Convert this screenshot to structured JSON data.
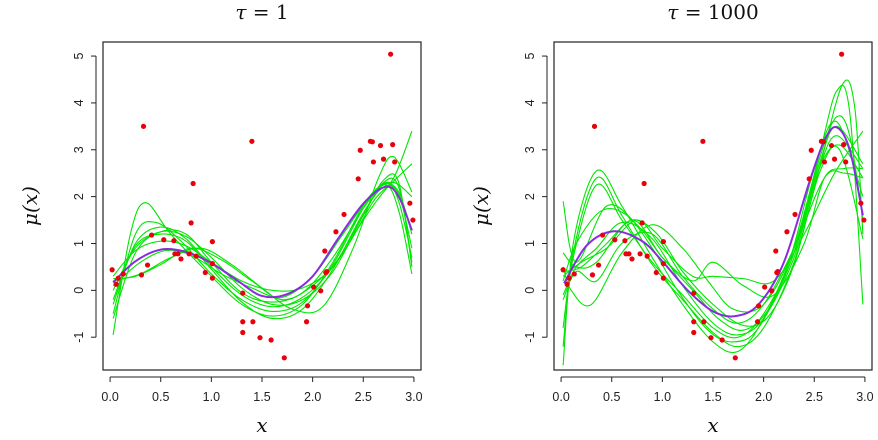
{
  "chart_data": [
    {
      "type": "scatter",
      "title": "τ = 1",
      "title_symbol": "τ",
      "title_value": "1",
      "xlabel": "x",
      "ylabel": "μ(x)",
      "xlim": [
        -0.07,
        3.07
      ],
      "ylim": [
        -1.7,
        5.3
      ],
      "xticks": [
        0.0,
        0.5,
        1.0,
        1.5,
        2.0,
        2.5,
        3.0
      ],
      "xtick_labels": [
        "0.0",
        "0.5",
        "1.0",
        "1.5",
        "2.0",
        "2.5",
        "3.0"
      ],
      "yticks": [
        -1,
        0,
        1,
        2,
        3,
        4,
        5
      ],
      "ytick_labels": [
        "-1",
        "0",
        "1",
        "2",
        "3",
        "4",
        "5"
      ],
      "grid": false,
      "colors": {
        "points": "#e8000b",
        "mean": "#8a2be2",
        "samples": "#00e600"
      },
      "points": [
        [
          0.02,
          0.44
        ],
        [
          0.06,
          0.13
        ],
        [
          0.08,
          0.26
        ],
        [
          0.13,
          0.35
        ],
        [
          0.31,
          0.33
        ],
        [
          0.33,
          3.5
        ],
        [
          0.37,
          0.54
        ],
        [
          0.41,
          1.18
        ],
        [
          0.53,
          1.08
        ],
        [
          0.63,
          1.06
        ],
        [
          0.64,
          0.78
        ],
        [
          0.67,
          0.78
        ],
        [
          0.7,
          0.67
        ],
        [
          0.78,
          0.78
        ],
        [
          0.8,
          1.44
        ],
        [
          0.82,
          2.28
        ],
        [
          0.85,
          0.73
        ],
        [
          0.94,
          0.38
        ],
        [
          1.01,
          0.57
        ],
        [
          1.01,
          1.04
        ],
        [
          1.01,
          0.26
        ],
        [
          1.31,
          -0.06
        ],
        [
          1.31,
          -0.67
        ],
        [
          1.31,
          -0.9
        ],
        [
          1.4,
          3.18
        ],
        [
          1.41,
          -0.67
        ],
        [
          1.48,
          -1.01
        ],
        [
          1.59,
          -1.06
        ],
        [
          1.72,
          -1.44
        ],
        [
          1.94,
          -0.67
        ],
        [
          1.95,
          -0.33
        ],
        [
          2.01,
          0.07
        ],
        [
          2.08,
          -0.01
        ],
        [
          2.12,
          0.84
        ],
        [
          2.13,
          0.38
        ],
        [
          2.14,
          0.4
        ],
        [
          2.23,
          1.25
        ],
        [
          2.31,
          1.62
        ],
        [
          2.45,
          2.38
        ],
        [
          2.47,
          2.99
        ],
        [
          2.57,
          3.18
        ],
        [
          2.59,
          3.17
        ],
        [
          2.6,
          2.74
        ],
        [
          2.67,
          3.09
        ],
        [
          2.7,
          2.8
        ],
        [
          2.77,
          5.04
        ],
        [
          2.79,
          3.11
        ],
        [
          2.81,
          2.74
        ],
        [
          2.96,
          1.86
        ],
        [
          2.99,
          1.5
        ]
      ],
      "mean_curve": {
        "x": [
          0.03,
          0.25,
          0.5,
          0.75,
          1.0,
          1.25,
          1.5,
          1.75,
          2.0,
          2.25,
          2.5,
          2.72,
          2.85,
          2.98
        ],
        "y": [
          0.17,
          0.62,
          0.87,
          0.82,
          0.58,
          0.22,
          -0.12,
          -0.08,
          0.3,
          1.1,
          1.85,
          2.21,
          2.0,
          1.28
        ]
      },
      "sample_curves": [
        {
          "x": [
            0.03,
            0.2,
            0.35,
            0.6,
            1.0,
            1.3,
            1.6,
            1.9,
            2.2,
            2.5,
            2.72,
            2.85,
            2.98
          ],
          "y": [
            -0.95,
            1.2,
            1.87,
            1.2,
            0.3,
            -0.3,
            -0.55,
            -0.3,
            0.6,
            1.8,
            2.25,
            1.7,
            0.35
          ]
        },
        {
          "x": [
            0.03,
            0.25,
            0.45,
            0.7,
            1.0,
            1.3,
            1.6,
            1.9,
            2.2,
            2.5,
            2.72,
            2.85,
            2.98
          ],
          "y": [
            -0.5,
            1.2,
            1.45,
            1.05,
            0.35,
            -0.2,
            -0.45,
            -0.25,
            0.55,
            1.75,
            2.3,
            1.9,
            0.7
          ]
        },
        {
          "x": [
            0.03,
            0.25,
            0.5,
            0.75,
            1.0,
            1.3,
            1.6,
            1.9,
            2.2,
            2.5,
            2.7,
            2.85,
            2.98
          ],
          "y": [
            -0.3,
            1.0,
            1.35,
            1.1,
            0.5,
            -0.1,
            -0.35,
            -0.15,
            0.5,
            1.6,
            2.35,
            2.3,
            0.5
          ]
        },
        {
          "x": [
            0.03,
            0.25,
            0.5,
            0.75,
            1.0,
            1.3,
            1.6,
            1.9,
            2.2,
            2.5,
            2.7,
            2.85,
            2.98
          ],
          "y": [
            0.0,
            0.9,
            1.25,
            1.15,
            0.7,
            0.05,
            -0.3,
            -0.2,
            0.4,
            1.6,
            2.3,
            2.2,
            0.6
          ]
        },
        {
          "x": [
            0.03,
            0.25,
            0.5,
            0.75,
            1.0,
            1.3,
            1.6,
            1.9,
            2.2,
            2.5,
            2.72,
            2.98
          ],
          "y": [
            0.3,
            0.85,
            1.05,
            0.95,
            0.6,
            0.2,
            0.0,
            0.05,
            0.5,
            1.5,
            2.15,
            2.7
          ]
        },
        {
          "x": [
            0.03,
            0.3,
            0.6,
            0.9,
            1.2,
            1.5,
            1.8,
            2.1,
            2.4,
            2.65,
            2.8,
            2.98
          ],
          "y": [
            0.2,
            0.35,
            0.7,
            0.9,
            0.55,
            0.05,
            -0.4,
            -0.35,
            0.9,
            2.4,
            2.85,
            2.1
          ]
        },
        {
          "x": [
            0.03,
            0.25,
            0.5,
            0.8,
            1.1,
            1.4,
            1.7,
            2.0,
            2.3,
            2.6,
            2.8,
            2.98
          ],
          "y": [
            0.25,
            0.3,
            0.55,
            0.9,
            0.65,
            0.2,
            -0.2,
            0.1,
            0.8,
            1.9,
            2.4,
            3.4
          ]
        },
        {
          "x": [
            0.03,
            0.25,
            0.5,
            0.75,
            1.0,
            1.3,
            1.6,
            1.9,
            2.2,
            2.5,
            2.7,
            2.85,
            2.98
          ],
          "y": [
            -0.6,
            0.8,
            1.25,
            1.2,
            0.6,
            -0.05,
            -0.25,
            -0.05,
            0.7,
            1.75,
            2.25,
            2.1,
            1.2
          ]
        },
        {
          "x": [
            0.03,
            0.25,
            0.5,
            0.75,
            1.0,
            1.3,
            1.6,
            1.9,
            2.2,
            2.5,
            2.7,
            2.85,
            2.98
          ],
          "y": [
            -0.2,
            0.95,
            1.2,
            1.05,
            0.45,
            -0.25,
            -0.6,
            -0.4,
            0.45,
            1.65,
            2.2,
            2.05,
            0.9
          ]
        },
        {
          "x": [
            0.03,
            0.3,
            0.55,
            0.8,
            1.1,
            1.4,
            1.7,
            2.0,
            2.3,
            2.6,
            2.8,
            2.98
          ],
          "y": [
            0.1,
            0.6,
            0.85,
            0.75,
            0.35,
            0.05,
            -0.15,
            0.3,
            1.2,
            2.1,
            2.3,
            2.0
          ]
        }
      ]
    },
    {
      "type": "scatter",
      "title": "τ = 1000",
      "title_symbol": "τ",
      "title_value": "1000",
      "xlabel": "x",
      "ylabel": "μ(x)",
      "xlim": [
        -0.07,
        3.07
      ],
      "ylim": [
        -1.7,
        5.3
      ],
      "xticks": [
        0.0,
        0.5,
        1.0,
        1.5,
        2.0,
        2.5,
        3.0
      ],
      "xtick_labels": [
        "0.0",
        "0.5",
        "1.0",
        "1.5",
        "2.0",
        "2.5",
        "3.0"
      ],
      "yticks": [
        -1,
        0,
        1,
        2,
        3,
        4,
        5
      ],
      "ytick_labels": [
        "-1",
        "0",
        "1",
        "2",
        "3",
        "4",
        "5"
      ],
      "grid": false,
      "colors": {
        "points": "#e8000b",
        "mean": "#8a2be2",
        "samples": "#00e600"
      },
      "points": [
        [
          0.02,
          0.44
        ],
        [
          0.06,
          0.13
        ],
        [
          0.08,
          0.26
        ],
        [
          0.13,
          0.35
        ],
        [
          0.31,
          0.33
        ],
        [
          0.33,
          3.5
        ],
        [
          0.37,
          0.54
        ],
        [
          0.41,
          1.18
        ],
        [
          0.53,
          1.08
        ],
        [
          0.63,
          1.06
        ],
        [
          0.64,
          0.78
        ],
        [
          0.67,
          0.78
        ],
        [
          0.7,
          0.67
        ],
        [
          0.78,
          0.78
        ],
        [
          0.8,
          1.44
        ],
        [
          0.82,
          2.28
        ],
        [
          0.85,
          0.73
        ],
        [
          0.94,
          0.38
        ],
        [
          1.01,
          0.57
        ],
        [
          1.01,
          1.04
        ],
        [
          1.01,
          0.26
        ],
        [
          1.31,
          -0.06
        ],
        [
          1.31,
          -0.67
        ],
        [
          1.31,
          -0.9
        ],
        [
          1.4,
          3.18
        ],
        [
          1.41,
          -0.67
        ],
        [
          1.48,
          -1.01
        ],
        [
          1.59,
          -1.06
        ],
        [
          1.72,
          -1.44
        ],
        [
          1.94,
          -0.67
        ],
        [
          1.95,
          -0.33
        ],
        [
          2.01,
          0.07
        ],
        [
          2.08,
          -0.01
        ],
        [
          2.12,
          0.84
        ],
        [
          2.13,
          0.38
        ],
        [
          2.14,
          0.4
        ],
        [
          2.23,
          1.25
        ],
        [
          2.31,
          1.62
        ],
        [
          2.45,
          2.38
        ],
        [
          2.47,
          2.99
        ],
        [
          2.57,
          3.18
        ],
        [
          2.59,
          3.17
        ],
        [
          2.6,
          2.74
        ],
        [
          2.67,
          3.09
        ],
        [
          2.7,
          2.8
        ],
        [
          2.77,
          5.04
        ],
        [
          2.79,
          3.11
        ],
        [
          2.81,
          2.74
        ],
        [
          2.96,
          1.86
        ],
        [
          2.99,
          1.5
        ]
      ],
      "mean_curve": {
        "x": [
          0.03,
          0.25,
          0.52,
          0.8,
          1.0,
          1.25,
          1.5,
          1.72,
          1.95,
          2.2,
          2.45,
          2.6,
          2.72,
          2.85,
          2.98
        ],
        "y": [
          0.15,
          0.95,
          1.26,
          1.05,
          0.62,
          0.0,
          -0.45,
          -0.55,
          -0.3,
          0.6,
          2.3,
          3.2,
          3.48,
          3.0,
          1.6
        ]
      },
      "sample_curves": [
        {
          "x": [
            0.02,
            0.12,
            0.35,
            0.6,
            0.9,
            1.2,
            1.5,
            1.75,
            2.0,
            2.3,
            2.55,
            2.72,
            2.85,
            2.98
          ],
          "y": [
            -1.6,
            1.0,
            2.55,
            1.8,
            0.7,
            -0.3,
            -1.1,
            -1.3,
            -0.6,
            0.9,
            2.9,
            4.25,
            3.8,
            -0.3
          ]
        },
        {
          "x": [
            0.02,
            0.12,
            0.35,
            0.6,
            0.9,
            1.2,
            1.5,
            1.75,
            2.0,
            2.3,
            2.55,
            2.78,
            2.9,
            2.98
          ],
          "y": [
            -1.2,
            0.8,
            2.4,
            1.6,
            0.55,
            -0.2,
            -0.9,
            -1.2,
            -0.8,
            0.6,
            2.6,
            4.4,
            3.9,
            1.2
          ]
        },
        {
          "x": [
            0.02,
            0.12,
            0.35,
            0.6,
            0.9,
            1.2,
            1.5,
            1.75,
            2.0,
            2.3,
            2.55,
            2.72,
            2.85,
            2.98
          ],
          "y": [
            -0.8,
            0.7,
            2.25,
            1.5,
            0.6,
            -0.1,
            -0.8,
            -1.0,
            -0.5,
            0.8,
            2.8,
            3.7,
            3.3,
            1.5
          ]
        },
        {
          "x": [
            0.02,
            0.15,
            0.45,
            0.75,
            1.0,
            1.3,
            1.55,
            1.8,
            2.05,
            2.3,
            2.55,
            2.72,
            2.98
          ],
          "y": [
            1.9,
            0.6,
            1.8,
            1.4,
            0.7,
            0.0,
            -0.6,
            -0.85,
            -0.4,
            0.8,
            2.6,
            3.3,
            2.6
          ]
        },
        {
          "x": [
            0.02,
            0.1,
            0.3,
            0.6,
            0.9,
            1.2,
            1.45,
            1.7,
            2.0,
            2.3,
            2.55,
            2.72,
            2.98
          ],
          "y": [
            0.5,
            0.0,
            -0.3,
            0.8,
            1.4,
            0.9,
            0.2,
            -0.4,
            -0.3,
            0.9,
            2.7,
            3.5,
            2.7
          ]
        },
        {
          "x": [
            0.02,
            0.15,
            0.35,
            0.7,
            1.0,
            1.3,
            1.5,
            1.8,
            2.1,
            2.4,
            2.6,
            2.8,
            2.98
          ],
          "y": [
            0.8,
            0.5,
            0.6,
            1.5,
            0.7,
            0.2,
            0.6,
            0.1,
            -0.1,
            1.0,
            2.4,
            2.6,
            2.6
          ]
        },
        {
          "x": [
            0.02,
            0.2,
            0.45,
            0.75,
            1.0,
            1.3,
            1.5,
            1.8,
            2.1,
            2.4,
            2.7,
            2.98
          ],
          "y": [
            0.3,
            0.6,
            0.9,
            1.5,
            0.9,
            0.3,
            0.3,
            0.25,
            0.2,
            1.2,
            2.5,
            3.4
          ]
        },
        {
          "x": [
            0.02,
            0.15,
            0.35,
            0.6,
            0.9,
            1.2,
            1.5,
            1.75,
            2.0,
            2.3,
            2.6,
            2.8,
            2.98
          ],
          "y": [
            -0.2,
            0.4,
            0.2,
            1.0,
            1.2,
            0.3,
            -0.4,
            -0.7,
            -0.3,
            0.9,
            2.4,
            2.5,
            2.4
          ]
        },
        {
          "x": [
            0.02,
            0.15,
            0.35,
            0.6,
            0.9,
            1.2,
            1.5,
            1.75,
            2.0,
            2.3,
            2.55,
            2.75,
            2.98
          ],
          "y": [
            -0.1,
            0.5,
            0.9,
            1.45,
            1.1,
            0.1,
            -0.7,
            -0.95,
            -0.6,
            0.7,
            2.6,
            3.1,
            2.4
          ]
        },
        {
          "x": [
            0.02,
            0.2,
            0.45,
            0.7,
            0.95,
            1.2,
            1.5,
            1.8,
            2.05,
            2.3,
            2.55,
            2.75,
            2.98
          ],
          "y": [
            0.4,
            0.5,
            1.0,
            1.5,
            1.2,
            0.4,
            -0.3,
            -0.75,
            -0.55,
            0.55,
            2.5,
            3.0,
            1.1
          ]
        },
        {
          "x": [
            0.02,
            0.15,
            0.4,
            0.65,
            0.9,
            1.15,
            1.45,
            1.7,
            1.95,
            2.25,
            2.5,
            2.72,
            2.98
          ],
          "y": [
            0.2,
            1.0,
            1.7,
            1.6,
            0.9,
            0.0,
            -0.85,
            -1.1,
            -0.8,
            0.6,
            2.6,
            3.6,
            2.0
          ]
        }
      ]
    }
  ]
}
